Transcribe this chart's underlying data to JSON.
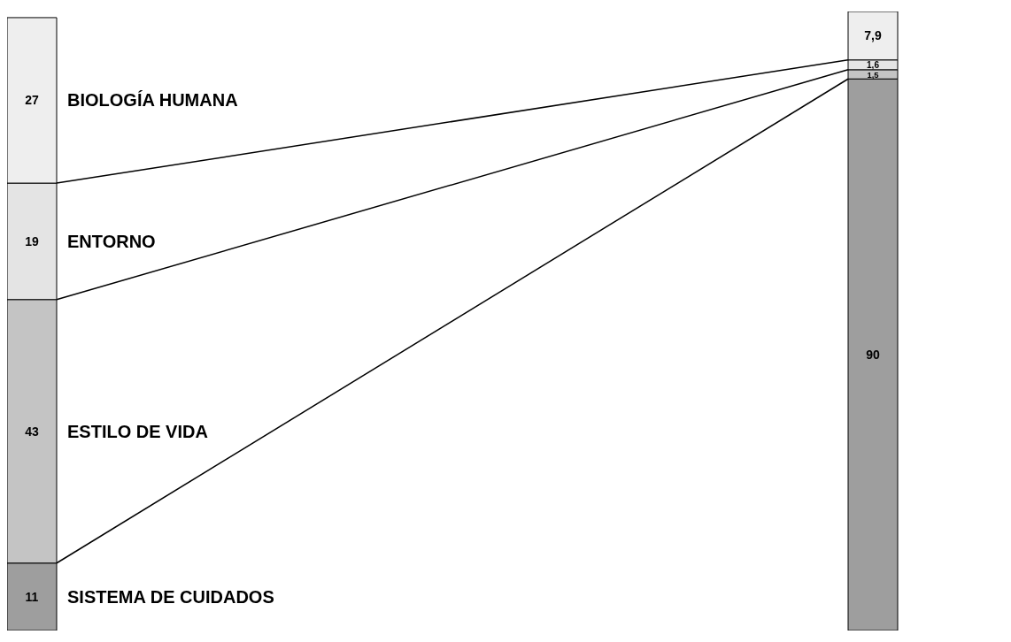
{
  "chart_data": {
    "type": "bar",
    "stacked": true,
    "categories": [
      null,
      null
    ],
    "series": [
      {
        "name": "SISTEMA DE CUIDADOS",
        "color": "#9e9e9e",
        "values": [
          11,
          90
        ],
        "value_labels": [
          "11",
          "90"
        ]
      },
      {
        "name": "ESTILO DE VIDA",
        "color": "#c4c4c4",
        "values": [
          43,
          1.5
        ],
        "value_labels": [
          "43",
          "1,5"
        ]
      },
      {
        "name": "ENTORNO",
        "color": "#e4e4e4",
        "values": [
          19,
          1.6
        ],
        "value_labels": [
          "19",
          "1,6"
        ]
      },
      {
        "name": "BIOLOGÍA HUMANA",
        "color": "#eeeeee",
        "values": [
          27,
          7.9
        ],
        "value_labels": [
          "27",
          "7,9"
        ]
      }
    ],
    "legend": false
  }
}
